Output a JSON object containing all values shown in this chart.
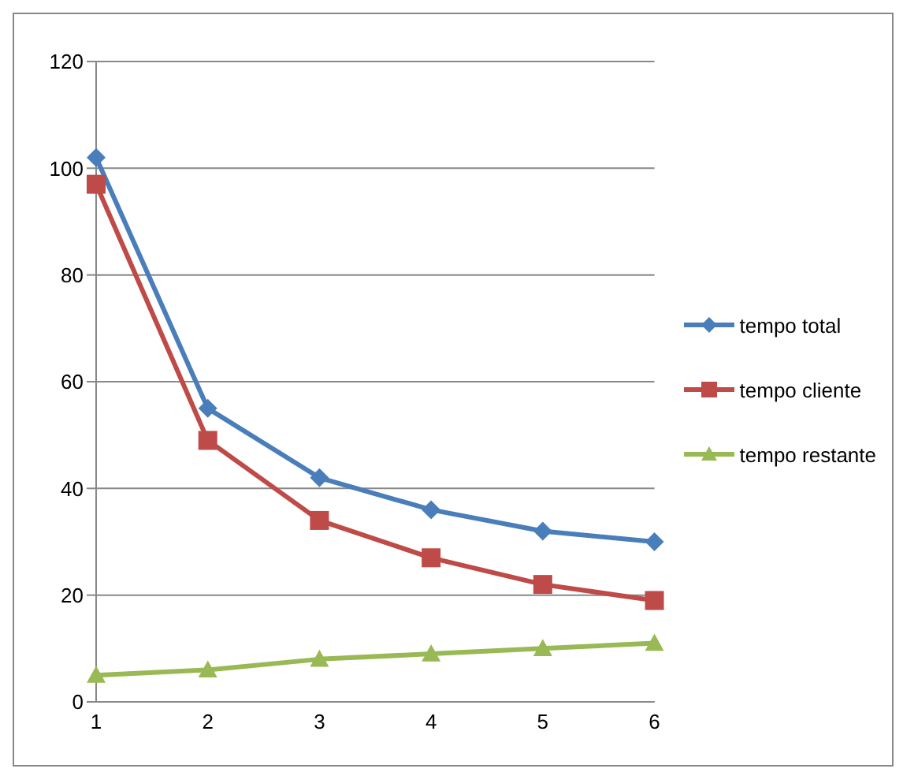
{
  "chart_data": {
    "type": "line",
    "categories": [
      "1",
      "2",
      "3",
      "4",
      "5",
      "6"
    ],
    "series": [
      {
        "name": "tempo total",
        "color": "#4a7ebb",
        "marker": "diamond",
        "values": [
          102,
          55,
          42,
          36,
          32,
          30
        ]
      },
      {
        "name": "tempo cliente",
        "color": "#be4b48",
        "marker": "square",
        "values": [
          97,
          49,
          34,
          27,
          22,
          19
        ]
      },
      {
        "name": "tempo restante",
        "color": "#98b954",
        "marker": "triangle",
        "values": [
          5,
          6,
          8,
          9,
          10,
          11
        ]
      }
    ],
    "ylim": [
      0,
      120
    ],
    "yticks": [
      0,
      20,
      40,
      60,
      80,
      100,
      120
    ],
    "grid": "y",
    "legend": "right",
    "line_style": "solid"
  }
}
